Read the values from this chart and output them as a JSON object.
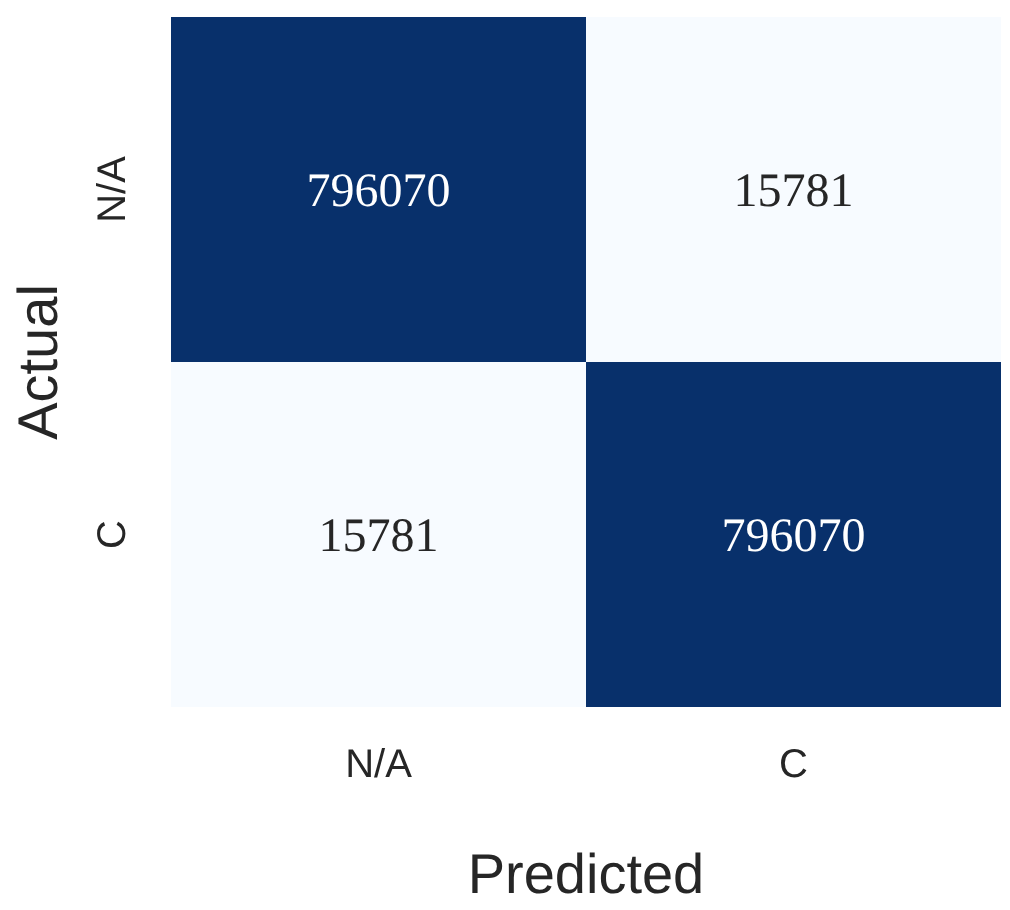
{
  "chart_data": {
    "type": "heatmap",
    "xlabel": "Predicted",
    "ylabel": "Actual",
    "categories": [
      "N/A",
      "C"
    ],
    "y_categories": [
      "N/A",
      "C"
    ],
    "cells": [
      [
        796070,
        15781
      ],
      [
        15781,
        796070
      ]
    ],
    "data_labels": true
  }
}
